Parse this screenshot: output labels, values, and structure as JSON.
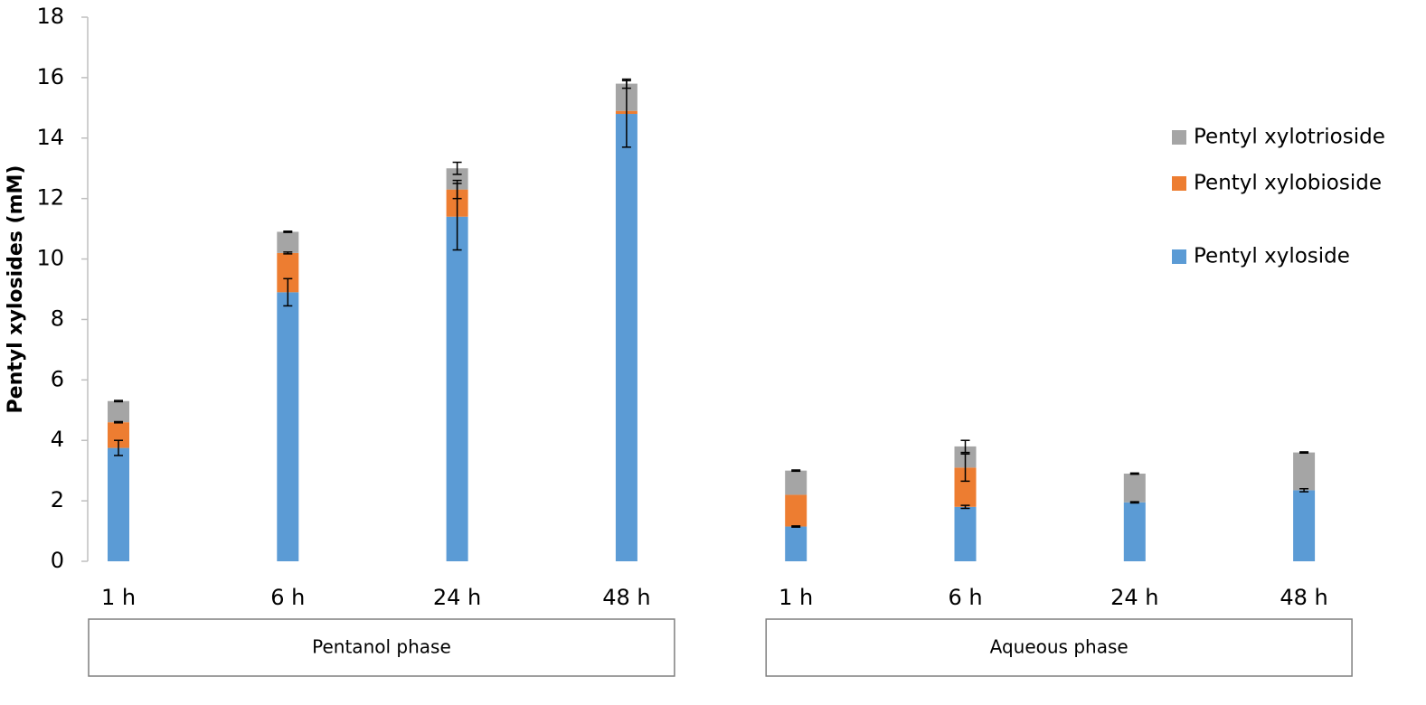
{
  "chart_data": {
    "type": "stacked_bar",
    "y_label": "Pentyl xylosides (mM)",
    "groups": [
      {
        "name": "Pentanol phase",
        "categories": [
          "1 h",
          "6 h",
          "24 h",
          "48 h"
        ]
      },
      {
        "name": "Aqueous phase",
        "categories": [
          "1 h",
          "6 h",
          "24 h",
          "48 h"
        ]
      }
    ],
    "series": [
      {
        "name": "Pentyl xyloside",
        "color": "#5b9bd5",
        "values": [
          3.75,
          8.9,
          11.4,
          14.8,
          1.15,
          1.8,
          1.95,
          2.35
        ],
        "errors": [
          0.25,
          0.45,
          1.1,
          1.1,
          0.02,
          0.05,
          0.02,
          0.05
        ]
      },
      {
        "name": "Pentyl xylobioside",
        "color": "#ed7d31",
        "values": [
          0.85,
          1.3,
          0.9,
          0.1,
          1.05,
          1.3,
          0,
          0
        ],
        "errors": [
          0.02,
          0.03,
          0.3,
          null,
          null,
          0.45,
          null,
          null
        ]
      },
      {
        "name": "Pentyl xylotrioside",
        "color": "#a5a5a5",
        "values": [
          0.7,
          0.7,
          0.7,
          0.9,
          0.8,
          0.7,
          0.95,
          1.25
        ],
        "errors": [
          0.02,
          0.02,
          0.2,
          0.15,
          0.02,
          0.2,
          0.02,
          0.02
        ]
      }
    ],
    "ylim": [
      0,
      18
    ],
    "yticks": [
      0,
      2,
      4,
      6,
      8,
      10,
      12,
      14,
      16,
      18
    ]
  }
}
